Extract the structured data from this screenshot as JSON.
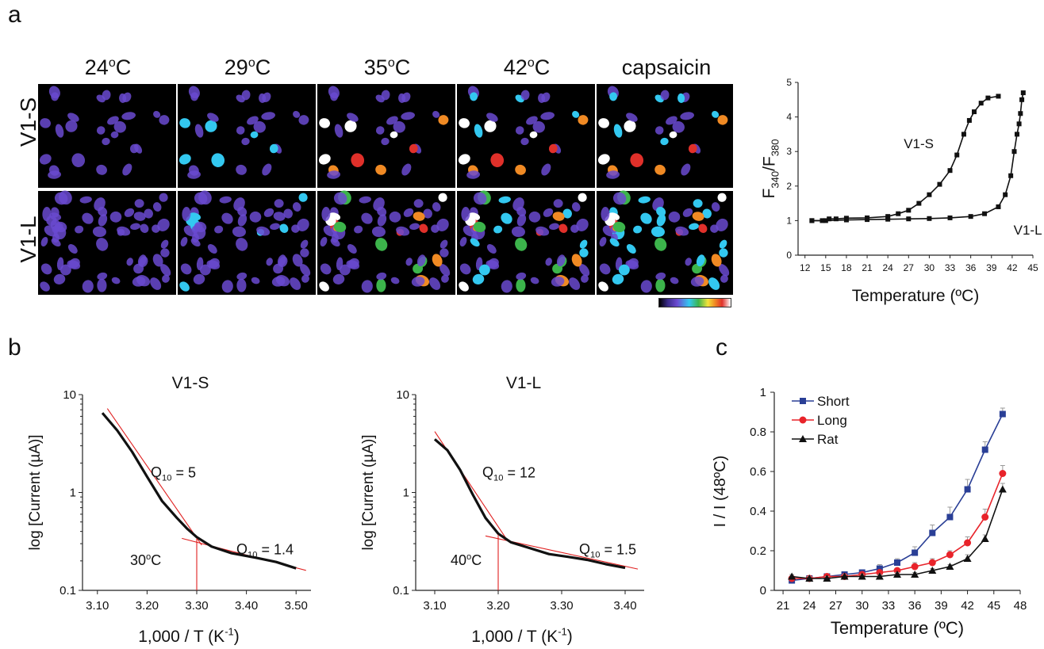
{
  "panel_a": {
    "letter": "a",
    "columns": [
      {
        "base": "24",
        "sup": "o",
        "tail": "C"
      },
      {
        "base": "29",
        "sup": "o",
        "tail": "C"
      },
      {
        "base": "35",
        "sup": "o",
        "tail": "C"
      },
      {
        "base": "42",
        "sup": "o",
        "tail": "C"
      },
      {
        "base": "capsaicin",
        "sup": "",
        "tail": ""
      }
    ],
    "rows": [
      "V1-S",
      "V1-L"
    ],
    "colors": {
      "dim": "#6a4ad0",
      "cyan": "#33c8f0",
      "green": "#3cb44b",
      "yellow": "#f2e33a",
      "orange": "#f08a24",
      "red": "#e0302a",
      "white": "#ffffff"
    }
  },
  "chart_data": [
    {
      "id": "a-right",
      "type": "line",
      "ylabel_main": "F",
      "ylabel_sub1": "340",
      "ylabel_sep": "/F",
      "ylabel_sub2": "380",
      "xlabel": "Temperature (ºC)",
      "xlim": [
        11,
        45
      ],
      "ylim": [
        0,
        5
      ],
      "xticks": [
        "12",
        "15",
        "18",
        "21",
        "24",
        "27",
        "30",
        "33",
        "36",
        "39",
        "42",
        "45"
      ],
      "yticks": [
        "0",
        "1",
        "2",
        "3",
        "4",
        "5"
      ],
      "annotations": [
        "V1-S",
        "V1-L"
      ],
      "series": [
        {
          "x": [
            13,
            14.5,
            15.5,
            16.5,
            18,
            21,
            24,
            25.5,
            27,
            28.5,
            30,
            31.5,
            33,
            34,
            35,
            35.8,
            36.5,
            37.5,
            38.5,
            40
          ],
          "y": [
            1.0,
            1.0,
            1.05,
            1.05,
            1.07,
            1.08,
            1.12,
            1.2,
            1.3,
            1.5,
            1.75,
            2.05,
            2.45,
            2.9,
            3.5,
            3.9,
            4.15,
            4.4,
            4.55,
            4.6
          ]
        },
        {
          "x": [
            13,
            15,
            18,
            21,
            24,
            27,
            30,
            33,
            36,
            38,
            40,
            41,
            41.8,
            42.3,
            42.7,
            43,
            43.2,
            43.4,
            43.6
          ],
          "y": [
            1.0,
            1.0,
            1.02,
            1.03,
            1.04,
            1.05,
            1.06,
            1.08,
            1.12,
            1.2,
            1.4,
            1.75,
            2.3,
            3.0,
            3.5,
            3.8,
            4.1,
            4.5,
            4.7
          ]
        }
      ]
    },
    {
      "id": "b-left",
      "type": "line",
      "panel_letter": "b",
      "title": "V1-S",
      "xlabel_main": "1,000 / T (K",
      "xlabel_sup": "-1",
      "xlabel_end": ")",
      "ylabel": "log [Current (µA)]",
      "xlim": [
        3.07,
        3.53
      ],
      "ylim_log": [
        0.1,
        10
      ],
      "xticks": [
        3.1,
        3.2,
        3.3,
        3.4,
        3.5
      ],
      "xtick_labels": [
        "3.10",
        "3.20",
        "3.30",
        "3.40",
        "3.50"
      ],
      "ytick_labels": [
        "10",
        "1",
        "0.1"
      ],
      "annotations": [
        {
          "main": "Q",
          "sub": "10",
          "tail": " = 5"
        },
        {
          "main": "Q",
          "sub": "10",
          "tail": " = 1.4"
        },
        {
          "main": "30",
          "sup": "o",
          "tail": "C"
        }
      ],
      "series": [
        {
          "x": [
            3.11,
            3.14,
            3.17,
            3.2,
            3.23,
            3.26,
            3.28,
            3.3,
            3.33,
            3.37,
            3.42,
            3.46,
            3.5
          ],
          "y": [
            6.5,
            4.3,
            2.6,
            1.45,
            0.82,
            0.55,
            0.43,
            0.35,
            0.28,
            0.24,
            0.215,
            0.195,
            0.168
          ]
        }
      ]
    },
    {
      "id": "b-right",
      "type": "line",
      "title": "V1-L",
      "xlabel_main": "1,000 / T (K",
      "xlabel_sup": "-1",
      "xlabel_end": ")",
      "ylabel": "log [Current (µA)]",
      "xlim": [
        3.07,
        3.43
      ],
      "ylim_log": [
        0.1,
        10
      ],
      "xticks": [
        3.1,
        3.2,
        3.3,
        3.4
      ],
      "xtick_labels": [
        "3.10",
        "3.20",
        "3.30",
        "3.40"
      ],
      "ytick_labels": [
        "10",
        "1",
        "0.1"
      ],
      "annotations": [
        {
          "main": "Q",
          "sub": "10",
          "tail": " = 12"
        },
        {
          "main": "Q",
          "sub": "10",
          "tail": " = 1.5"
        },
        {
          "main": "40",
          "sup": "o",
          "tail": "C"
        }
      ],
      "series": [
        {
          "x": [
            3.1,
            3.12,
            3.14,
            3.16,
            3.18,
            3.2,
            3.22,
            3.25,
            3.28,
            3.31,
            3.34,
            3.37,
            3.4
          ],
          "y": [
            3.5,
            2.7,
            1.7,
            0.95,
            0.55,
            0.38,
            0.31,
            0.27,
            0.235,
            0.22,
            0.205,
            0.185,
            0.17
          ]
        }
      ]
    },
    {
      "id": "c",
      "type": "line",
      "panel_letter": "c",
      "xlabel": "Temperature (ºC)",
      "ylabel": "I / I (48ºC)",
      "xlim": [
        20,
        48
      ],
      "ylim": [
        0,
        1
      ],
      "xticks": [
        "21",
        "24",
        "27",
        "30",
        "33",
        "36",
        "39",
        "42",
        "45",
        "48"
      ],
      "yticks": [
        "0",
        "0.2",
        "0.4",
        "0.6",
        "0.8",
        "1"
      ],
      "legend_position": "top-left",
      "x": [
        22,
        24,
        26,
        28,
        30,
        32,
        34,
        36,
        38,
        40,
        42,
        44,
        46
      ],
      "series": [
        {
          "name": "Short",
          "color": "#2a3f96",
          "marker": "square",
          "values": [
            0.05,
            0.06,
            0.07,
            0.08,
            0.09,
            0.11,
            0.14,
            0.19,
            0.29,
            0.37,
            0.51,
            0.71,
            0.89
          ],
          "errors": [
            0.01,
            0.01,
            0.01,
            0.01,
            0.01,
            0.02,
            0.02,
            0.03,
            0.04,
            0.05,
            0.05,
            0.04,
            0.03
          ]
        },
        {
          "name": "Long",
          "color": "#e8232a",
          "marker": "circle",
          "values": [
            0.06,
            0.06,
            0.07,
            0.07,
            0.08,
            0.09,
            0.1,
            0.12,
            0.14,
            0.18,
            0.24,
            0.37,
            0.59
          ],
          "errors": [
            0.01,
            0.01,
            0.01,
            0.01,
            0.01,
            0.01,
            0.01,
            0.02,
            0.02,
            0.02,
            0.03,
            0.04,
            0.04
          ]
        },
        {
          "name": "Rat",
          "color": "#111111",
          "marker": "triangle",
          "values": [
            0.07,
            0.06,
            0.06,
            0.07,
            0.07,
            0.07,
            0.08,
            0.08,
            0.1,
            0.12,
            0.16,
            0.26,
            0.51
          ],
          "errors": [
            0.01,
            0.01,
            0.01,
            0.01,
            0.01,
            0.01,
            0.01,
            0.01,
            0.01,
            0.01,
            0.02,
            0.02,
            0.03
          ]
        }
      ]
    }
  ]
}
